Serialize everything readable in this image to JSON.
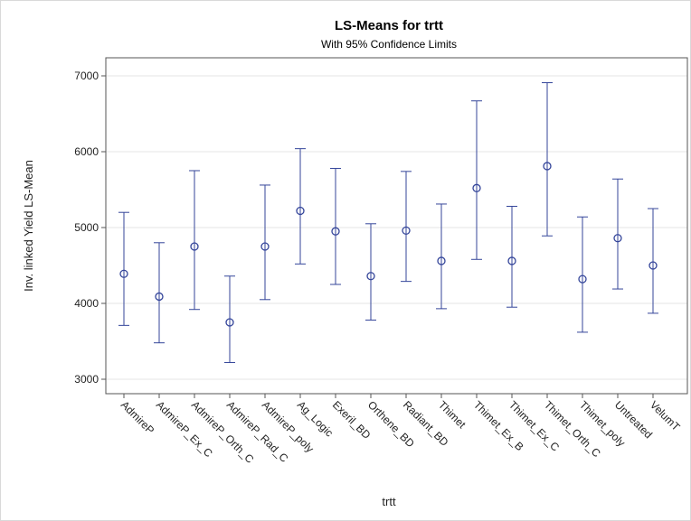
{
  "chart_data": {
    "type": "scatter",
    "title": "LS-Means for trtt",
    "subtitle": "With 95% Confidence Limits",
    "xlabel": "trtt",
    "ylabel": "Inv. linked Yield LS-Mean",
    "ylim": [
      2800,
      7200
    ],
    "yticks": [
      3000,
      4000,
      5000,
      6000,
      7000
    ],
    "grid": "horizontal",
    "categories": [
      "AdmireP",
      "AdmireP_Ex_C",
      "AdmireP_Orth_C",
      "AdmireP_Rad_C",
      "AdmireP_poly",
      "Ag_Logic",
      "Exeril_BD",
      "Orthene_BD",
      "Radiant_BD",
      "Thimet",
      "Thimet_Ex_B",
      "Thimet_Ex_C",
      "Thimet_Orth_C",
      "Thimet_poly",
      "Untreated",
      "VelumT"
    ],
    "values": [
      4390,
      4090,
      4750,
      3750,
      4750,
      5220,
      4950,
      4360,
      4960,
      4560,
      5520,
      4560,
      5810,
      4320,
      4860,
      4500
    ],
    "lower": [
      3710,
      3480,
      3920,
      3220,
      4050,
      4520,
      4250,
      3780,
      4290,
      3930,
      4580,
      3950,
      4890,
      3620,
      4190,
      3870
    ],
    "upper": [
      5200,
      4800,
      5750,
      4360,
      5560,
      6040,
      5780,
      5050,
      5740,
      5310,
      6670,
      5280,
      6910,
      5140,
      5640,
      5250
    ],
    "colors": {
      "series": "#34459a",
      "grid": "#e6e6e6",
      "axis": "#555555",
      "background": "#ffffff"
    }
  }
}
